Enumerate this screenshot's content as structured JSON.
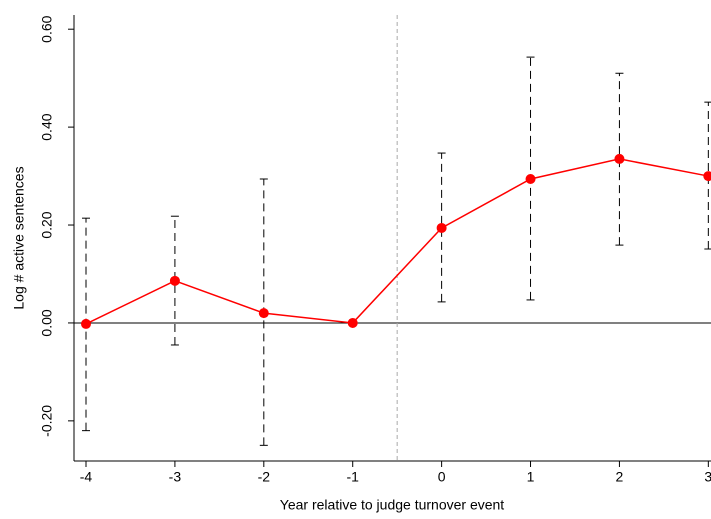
{
  "chart_data": {
    "type": "errorbar-line",
    "x_label": "Year relative to judge turnover event",
    "y_label": "Log # active sentences",
    "x": [
      -4,
      -3,
      -2,
      -1,
      0,
      1,
      2,
      3
    ],
    "values": [
      -0.002,
      0.086,
      0.02,
      0,
      0.194,
      0.294,
      0.335,
      0.3
    ],
    "ci_low": [
      -0.22,
      -0.045,
      -0.25,
      null,
      0.043,
      0.047,
      0.159,
      0.151
    ],
    "ci_high": [
      0.214,
      0.218,
      0.294,
      null,
      0.347,
      0.543,
      0.51,
      0.451
    ],
    "color": "#ff0000",
    "errorbar_color": "#000000",
    "xlim": [
      -4.135,
      3.03
    ],
    "ylim": [
      -0.282,
      0.629
    ],
    "xticks": [
      -4,
      -3,
      -2,
      -1,
      0,
      1,
      2,
      3
    ],
    "yticks": [
      {
        "value": -0.2,
        "label": "-0.20"
      },
      {
        "value": 0,
        "label": "0.00"
      },
      {
        "value": 0.2,
        "label": "0.20"
      },
      {
        "value": 0.4,
        "label": "0.40"
      },
      {
        "value": 0.6,
        "label": "0.60"
      }
    ],
    "hline": 0,
    "vline": -0.5
  }
}
